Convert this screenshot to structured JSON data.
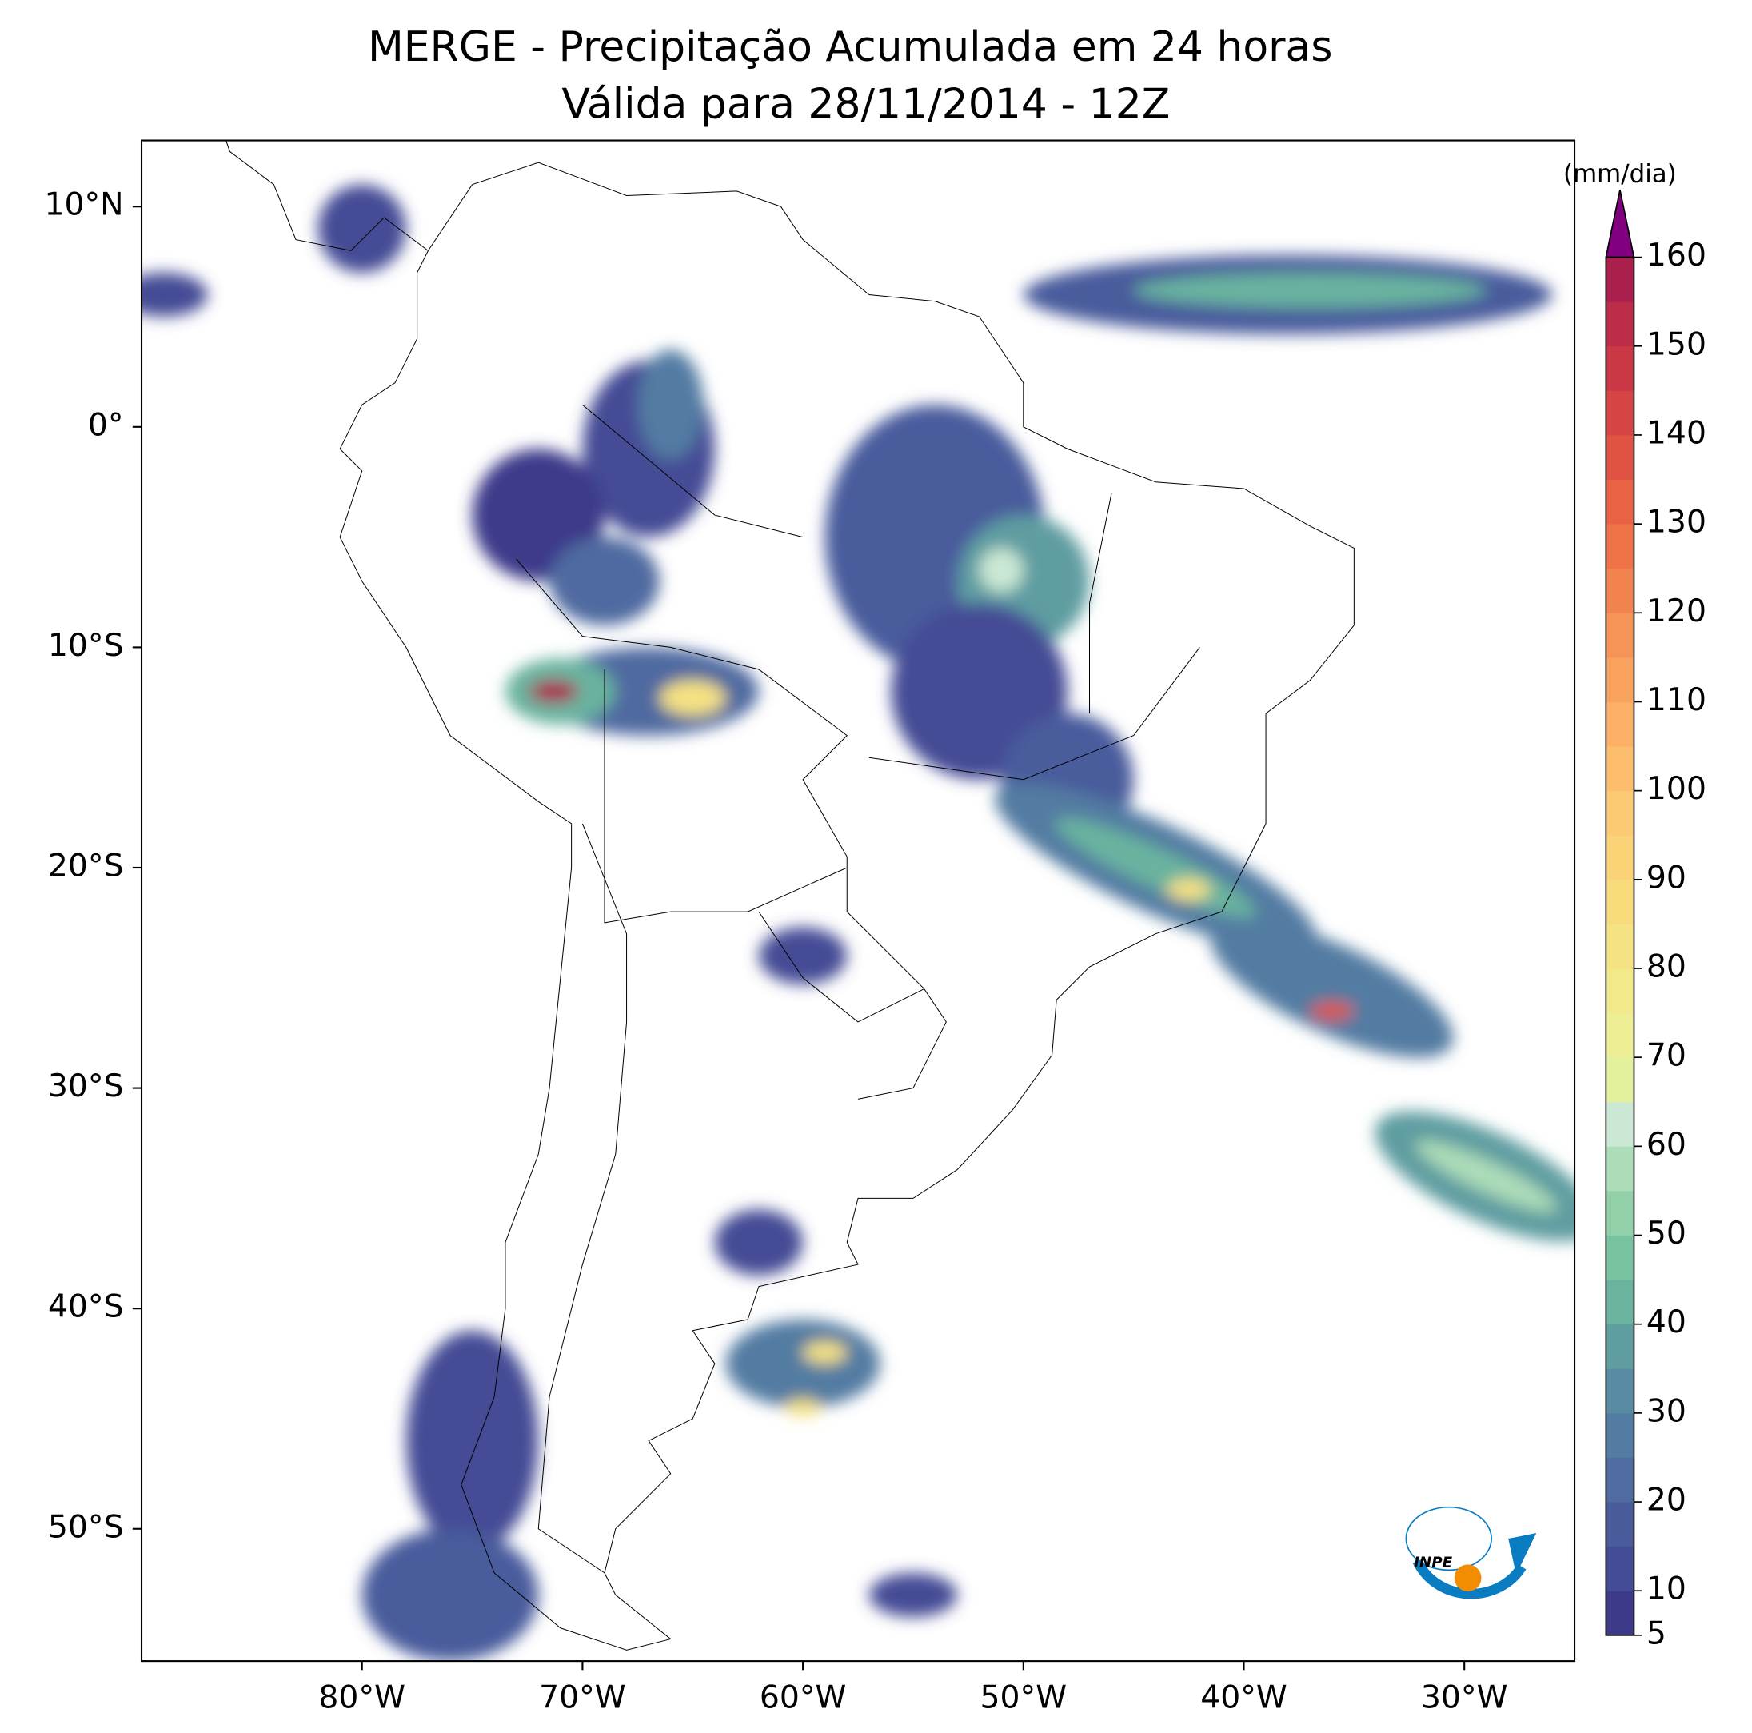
{
  "chart_data": {
    "type": "map",
    "title": "MERGE - Precipitação Acumulada em 24 horas",
    "subtitle": "Válida para 28/11/2014 - 12Z",
    "xlim": [
      -90,
      -25
    ],
    "ylim": [
      -56,
      13
    ],
    "xticks": [
      {
        "value": -80,
        "label": "80°W"
      },
      {
        "value": -70,
        "label": "70°W"
      },
      {
        "value": -60,
        "label": "60°W"
      },
      {
        "value": -50,
        "label": "50°W"
      },
      {
        "value": -40,
        "label": "40°W"
      },
      {
        "value": -30,
        "label": "30°W"
      }
    ],
    "yticks": [
      {
        "value": 10,
        "label": "10°N"
      },
      {
        "value": 0,
        "label": "0°"
      },
      {
        "value": -10,
        "label": "10°S"
      },
      {
        "value": -20,
        "label": "20°S"
      },
      {
        "value": -30,
        "label": "30°S"
      },
      {
        "value": -40,
        "label": "40°S"
      },
      {
        "value": -50,
        "label": "50°S"
      }
    ],
    "colorbar": {
      "label": "(mm/dia)",
      "vlim": [
        5,
        160
      ],
      "ticks": [
        5,
        10,
        20,
        30,
        40,
        50,
        60,
        70,
        80,
        90,
        100,
        110,
        120,
        130,
        140,
        150,
        160
      ],
      "colors": [
        "#3e3a8a",
        "#444c95",
        "#4a5b9c",
        "#4f6ba0",
        "#527ca2",
        "#588ca2",
        "#5f9da1",
        "#69b39f",
        "#78c4a0",
        "#91d0a8",
        "#acdcb8",
        "#cae8d4",
        "#e4f19c",
        "#eeee94",
        "#f2e98a",
        "#f5e282",
        "#f8db7b",
        "#fad377",
        "#fcca73",
        "#fcbd6d",
        "#fbb066",
        "#f9a25e",
        "#f69356",
        "#f3834e",
        "#ef7347",
        "#e96243",
        "#e05343",
        "#d64544",
        "#ca3846",
        "#bc2b48",
        "#aa1f4b"
      ],
      "extend_color": "#800080"
    },
    "logo_text": "INPE"
  }
}
